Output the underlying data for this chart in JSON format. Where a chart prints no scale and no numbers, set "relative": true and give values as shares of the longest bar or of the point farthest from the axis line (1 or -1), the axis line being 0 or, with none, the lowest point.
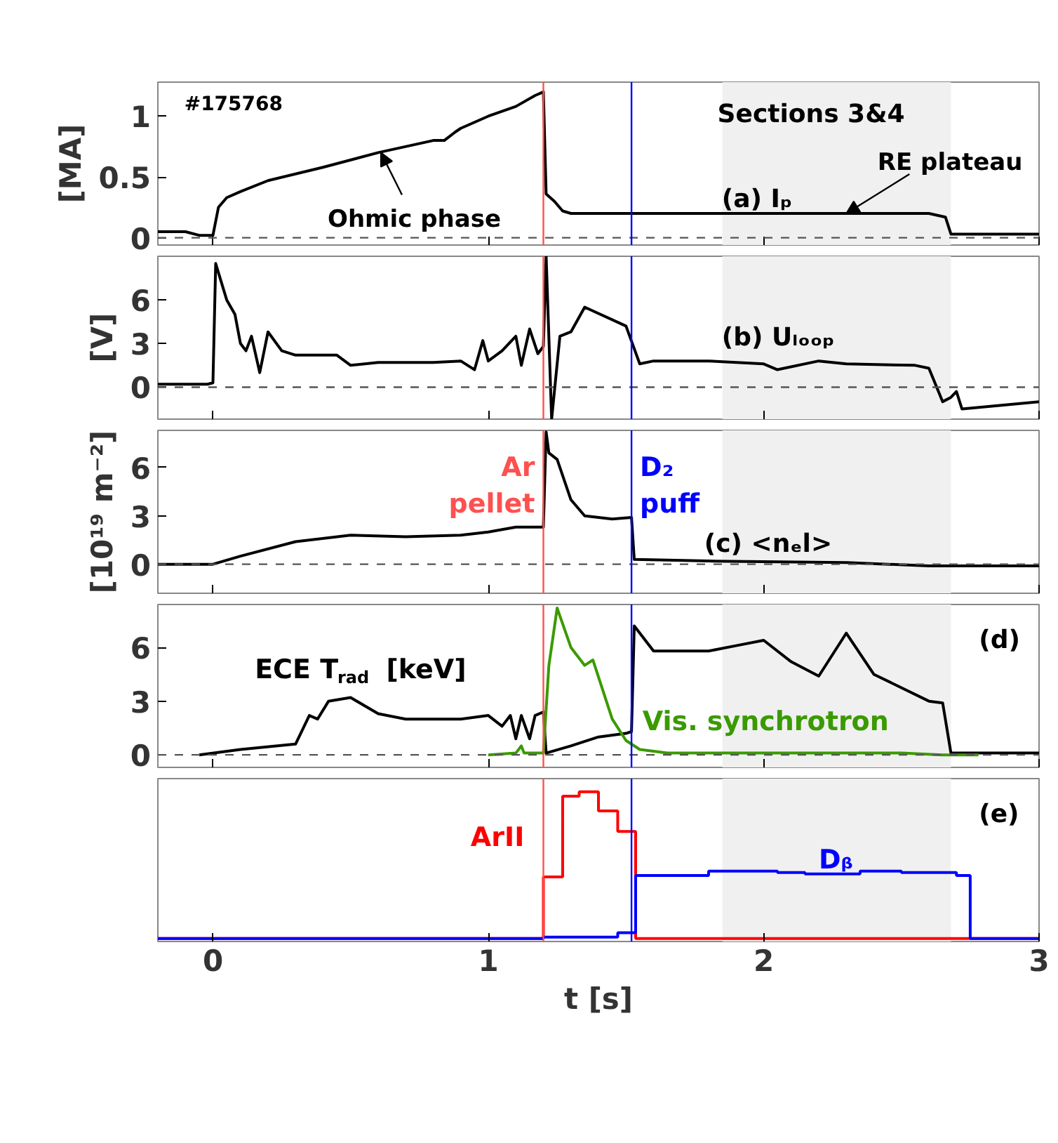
{
  "chart_data": [
    {
      "type": "line",
      "ylabel": "[MA]",
      "xlim": [
        -0.2,
        3
      ],
      "xticks": [
        0,
        1,
        2,
        3
      ],
      "ylim": [
        -0.06,
        1.28
      ],
      "yticks": [
        0,
        0.5,
        1
      ],
      "tick_labels": "y",
      "series": [
        {
          "color": "#000000",
          "x": [
            -0.2,
            -0.1,
            -0.05,
            0,
            0.02,
            0.05,
            0.1,
            0.2,
            0.4,
            0.6,
            0.8,
            0.84,
            0.88,
            0.9,
            1.0,
            1.1,
            1.17,
            1.2,
            1.21,
            1.24,
            1.27,
            1.3,
            1.5,
            2.6,
            2.66,
            2.68,
            3.0
          ],
          "values": [
            0.05,
            0.05,
            0.02,
            0.02,
            0.25,
            0.33,
            0.38,
            0.47,
            0.58,
            0.7,
            0.8,
            0.8,
            0.87,
            0.9,
            1.0,
            1.08,
            1.17,
            1.2,
            0.36,
            0.3,
            0.22,
            0.2,
            0.2,
            0.2,
            0.17,
            0.03,
            0.03
          ]
        }
      ],
      "ref_lines": [
        {
          "axis": "y",
          "value": 0,
          "color": "#555555",
          "line_style": "dashed"
        },
        {
          "axis": "x",
          "value": 1.2,
          "color": "#ff5050"
        },
        {
          "axis": "x",
          "value": 1.52,
          "color": "#0000ff"
        }
      ],
      "bands": [
        {
          "axis": "x",
          "from": 1.85,
          "to": 2.68,
          "color": "#f0f0f0"
        }
      ],
      "annotations": [
        "#175768",
        "Sections 3&4",
        "(a) Iₚ",
        {
          "text": "Ohmic phase",
          "x": 0.61,
          "y": 0.7
        },
        {
          "text": "RE plateau",
          "x": 2.3,
          "y": 0.2
        }
      ]
    },
    {
      "type": "line",
      "ylabel": "[V]",
      "xlim": [
        -0.2,
        3
      ],
      "xticks": [
        0,
        1,
        2,
        3
      ],
      "ylim": [
        -2.2,
        9
      ],
      "yticks": [
        0,
        3,
        6
      ],
      "tick_labels": "y",
      "series": [
        {
          "color": "#000000",
          "x": [
            -0.2,
            -0.02,
            0,
            0.01,
            0.05,
            0.08,
            0.1,
            0.12,
            0.14,
            0.17,
            0.2,
            0.25,
            0.3,
            0.45,
            0.5,
            0.6,
            0.8,
            0.9,
            0.95,
            0.98,
            1.0,
            1.05,
            1.1,
            1.12,
            1.15,
            1.18,
            1.2,
            1.21,
            1.23,
            1.26,
            1.3,
            1.35,
            1.5,
            1.55,
            1.6,
            1.8,
            2.0,
            2.05,
            2.2,
            2.3,
            2.55,
            2.6,
            2.65,
            2.68,
            2.7,
            2.72,
            3.0
          ],
          "values": [
            0.2,
            0.2,
            0.3,
            8.5,
            6,
            5,
            3,
            2.5,
            3.5,
            1,
            3.8,
            2.5,
            2.2,
            2.2,
            1.5,
            1.7,
            1.7,
            1.8,
            1.2,
            3.2,
            1.8,
            2.5,
            3.5,
            1.5,
            4,
            2.3,
            2.8,
            9,
            -2.2,
            3.5,
            3.8,
            5.5,
            4.2,
            1.6,
            1.8,
            1.8,
            1.6,
            1.2,
            1.8,
            1.6,
            1.5,
            1.3,
            -1.0,
            -0.7,
            -0.3,
            -1.5,
            -1.0
          ]
        }
      ],
      "ref_lines": [
        {
          "axis": "y",
          "value": 0,
          "color": "#555555",
          "line_style": "dashed"
        },
        {
          "axis": "x",
          "value": 1.2,
          "color": "#ff5050"
        },
        {
          "axis": "x",
          "value": 1.52,
          "color": "#0000ff"
        }
      ],
      "bands": [
        {
          "axis": "x",
          "from": 1.85,
          "to": 2.68,
          "color": "#f0f0f0"
        }
      ],
      "annotations": [
        "(b) Uₗₒₒₚ"
      ]
    },
    {
      "type": "line",
      "ylabel": "[10¹⁹ m⁻²]",
      "xlim": [
        -0.2,
        3
      ],
      "xticks": [
        0,
        1,
        2,
        3
      ],
      "ylim": [
        -1.8,
        8.3
      ],
      "yticks": [
        0,
        3,
        6
      ],
      "tick_labels": "y",
      "series": [
        {
          "color": "#000000",
          "x": [
            -0.2,
            0,
            0.1,
            0.3,
            0.5,
            0.7,
            0.9,
            1.0,
            1.1,
            1.2,
            1.21,
            1.22,
            1.25,
            1.3,
            1.35,
            1.45,
            1.52,
            1.53,
            1.8,
            2.3,
            2.6,
            3.0
          ],
          "values": [
            0,
            0,
            0.5,
            1.4,
            1.8,
            1.7,
            1.8,
            2.0,
            2.3,
            2.3,
            8.2,
            6.9,
            6.5,
            4,
            3,
            2.8,
            2.9,
            0.3,
            0.2,
            0.1,
            -0.1,
            -0.1
          ]
        }
      ],
      "ref_lines": [
        {
          "axis": "y",
          "value": 0,
          "color": "#555555",
          "line_style": "dashed"
        },
        {
          "axis": "x",
          "value": 1.2,
          "color": "#ff5050",
          "label": "Ar pellet"
        },
        {
          "axis": "x",
          "value": 1.52,
          "color": "#0000ff",
          "label": "D₂ puff"
        }
      ],
      "bands": [
        {
          "axis": "x",
          "from": 1.85,
          "to": 2.68,
          "color": "#f0f0f0"
        }
      ],
      "annotations": [
        "(c) <nₑl>"
      ]
    },
    {
      "type": "line",
      "xlim": [
        -0.2,
        3
      ],
      "xticks": [
        0,
        1,
        2,
        3
      ],
      "ylim": [
        -0.7,
        8.4
      ],
      "yticks": [
        0,
        3,
        6
      ],
      "tick_labels": "y",
      "series": [
        {
          "name": "ECE T$_{rad}$ [keV]",
          "color": "#000000",
          "x": [
            -0.05,
            0.1,
            0.3,
            0.35,
            0.38,
            0.42,
            0.5,
            0.6,
            0.7,
            0.9,
            1.0,
            1.05,
            1.08,
            1.1,
            1.12,
            1.15,
            1.17,
            1.2,
            1.21,
            1.3,
            1.4,
            1.5,
            1.52,
            1.53,
            1.6,
            1.8,
            1.9,
            2.0,
            2.1,
            2.2,
            2.3,
            2.4,
            2.6,
            2.65,
            2.68,
            3.0
          ],
          "values": [
            0,
            0.3,
            0.6,
            2.2,
            2.0,
            3.0,
            3.2,
            2.3,
            2.0,
            2.0,
            2.2,
            1.6,
            2.2,
            0.9,
            2.2,
            0.9,
            2.2,
            2.4,
            0.1,
            0.5,
            1.0,
            1.2,
            1.3,
            7.2,
            5.8,
            5.8,
            6.1,
            6.4,
            5.2,
            4.4,
            6.8,
            4.5,
            3.0,
            2.9,
            0.1,
            0.1
          ]
        },
        {
          "name": "Vis. synchrotron",
          "color": "#3a9a00",
          "x": [
            1.0,
            1.1,
            1.12,
            1.13,
            1.2,
            1.22,
            1.25,
            1.3,
            1.35,
            1.38,
            1.45,
            1.5,
            1.55,
            1.65,
            2.5,
            2.65,
            2.78
          ],
          "values": [
            0,
            0.1,
            0.5,
            0.1,
            0.1,
            5,
            8.2,
            6,
            5,
            5.3,
            2,
            0.8,
            0.3,
            0.1,
            0.1,
            0,
            0
          ]
        }
      ],
      "ref_lines": [
        {
          "axis": "y",
          "value": 0,
          "color": "#555555",
          "line_style": "dashed"
        },
        {
          "axis": "x",
          "value": 1.2,
          "color": "#ff5050"
        },
        {
          "axis": "x",
          "value": 1.52,
          "color": "#0000ff"
        }
      ],
      "bands": [
        {
          "axis": "x",
          "from": 1.85,
          "to": 2.68,
          "color": "#f0f0f0"
        }
      ],
      "annotations": [
        "(d)"
      ]
    },
    {
      "type": "step",
      "relative": true,
      "xlabel": "t [s]",
      "xlim": [
        -0.2,
        3
      ],
      "xticks": [
        0,
        1,
        2,
        3
      ],
      "tick_labels": "x",
      "series": [
        {
          "name": "ArII",
          "color": "#ff0000",
          "x": [
            -0.2,
            1.2,
            1.27,
            1.33,
            1.4,
            1.47,
            1.535,
            3.0
          ],
          "values": [
            0,
            0.42,
            0.97,
            1.0,
            0.87,
            0.73,
            0,
            0
          ]
        },
        {
          "name": "Dᵦ",
          "color": "#0000ff",
          "x": [
            -0.2,
            1.2,
            1.47,
            1.535,
            1.8,
            2.05,
            2.15,
            2.35,
            2.5,
            2.7,
            2.75,
            3.0
          ],
          "values": [
            0,
            0.01,
            0.04,
            0.43,
            0.46,
            0.45,
            0.44,
            0.46,
            0.45,
            0.43,
            0,
            0
          ]
        }
      ],
      "ref_lines": [
        {
          "axis": "x",
          "value": 1.2,
          "color": "#ff5050"
        },
        {
          "axis": "x",
          "value": 1.52,
          "color": "#0000ff"
        }
      ],
      "bands": [
        {
          "axis": "x",
          "from": 1.85,
          "to": 2.68,
          "color": "#f0f0f0"
        }
      ],
      "annotations": [
        "(e)"
      ]
    }
  ]
}
